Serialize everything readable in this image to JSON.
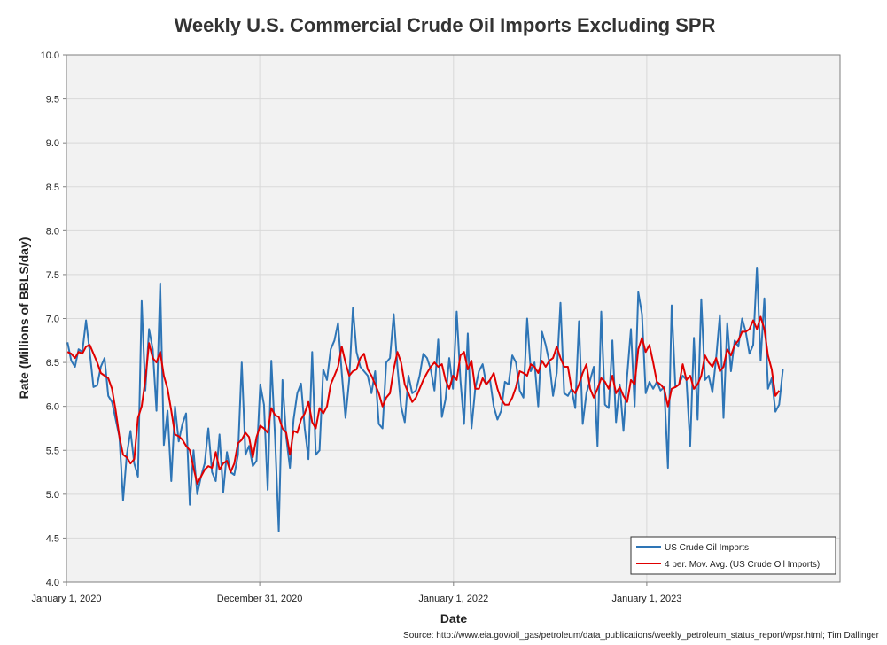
{
  "chart_data": {
    "type": "line",
    "title": "Weekly U.S. Commercial Crude Oil Imports Excluding SPR",
    "xlabel": "Date",
    "ylabel": "Rate (Millions of BBLS/day)",
    "source": "Source: http://www.eia.gov/oil_gas/petroleum/data_publications/weekly_petroleum_status_report/wpsr.html; Tim Dallinger",
    "ylim": [
      4.0,
      10.0
    ],
    "yticks": [
      4.0,
      4.5,
      5.0,
      5.5,
      6.0,
      6.5,
      7.0,
      7.5,
      8.0,
      8.5,
      9.0,
      9.5,
      10.0
    ],
    "ytick_labels": [
      "4.0",
      "4.5",
      "5.0",
      "5.5",
      "6.0",
      "6.5",
      "7.0",
      "7.5",
      "8.0",
      "8.5",
      "9.0",
      "9.5",
      "10.0"
    ],
    "xlim": [
      "2020-01-01",
      "2024-01-01"
    ],
    "xticks": [
      "2020-01-01",
      "2020-12-31",
      "2022-01-01",
      "2023-01-01"
    ],
    "xtick_labels": [
      "January 1, 2020",
      "December 31, 2020",
      "January 1, 2022",
      "January 1, 2023"
    ],
    "grid": true,
    "legend_position": "bottom-right",
    "colors": {
      "imports": "#2e75b6",
      "moving_avg": "#e00000",
      "plot_bg": "#f2f2f2",
      "grid": "#d9d9d9"
    },
    "series": [
      {
        "name": "US Crude Oil Imports",
        "color": "#2e75b6",
        "start": "2020-01-03",
        "interval_days": 7,
        "values": [
          6.73,
          6.52,
          6.45,
          6.65,
          6.62,
          6.98,
          6.62,
          6.22,
          6.24,
          6.45,
          6.55,
          6.12,
          6.05,
          5.85,
          5.65,
          4.93,
          5.45,
          5.72,
          5.35,
          5.2,
          7.2,
          6.18,
          6.88,
          6.65,
          5.95,
          7.4,
          5.56,
          5.95,
          5.15,
          6.0,
          5.6,
          5.8,
          5.92,
          4.88,
          5.5,
          5.0,
          5.2,
          5.35,
          5.75,
          5.25,
          5.15,
          5.68,
          5.02,
          5.48,
          5.25,
          5.22,
          5.45,
          6.5,
          5.45,
          5.55,
          5.32,
          5.38,
          6.25,
          6.02,
          5.05,
          6.52,
          5.65,
          4.58,
          6.3,
          5.65,
          5.3,
          5.85,
          6.15,
          6.26,
          5.75,
          5.4,
          6.62,
          5.45,
          5.5,
          6.42,
          6.3,
          6.65,
          6.75,
          6.95,
          6.38,
          5.87,
          6.3,
          7.12,
          6.62,
          6.45,
          6.4,
          6.35,
          6.15,
          6.4,
          5.8,
          5.75,
          6.5,
          6.55,
          7.05,
          6.45,
          6.0,
          5.82,
          6.35,
          6.15,
          6.18,
          6.35,
          6.6,
          6.55,
          6.42,
          6.18,
          6.76,
          5.88,
          6.08,
          6.55,
          6.2,
          7.08,
          6.3,
          5.8,
          6.83,
          5.75,
          6.2,
          6.4,
          6.48,
          6.25,
          6.3,
          6.0,
          5.85,
          5.95,
          6.28,
          6.25,
          6.58,
          6.5,
          6.18,
          6.1,
          7.0,
          6.4,
          6.5,
          6.0,
          6.85,
          6.7,
          6.5,
          6.12,
          6.38,
          7.18,
          6.15,
          6.12,
          6.2,
          5.98,
          6.97,
          5.8,
          6.15,
          6.3,
          6.45,
          5.55,
          7.08,
          6.02,
          5.98,
          6.75,
          5.82,
          6.25,
          5.72,
          6.35,
          6.88,
          6.0,
          7.3,
          7.05,
          6.15,
          6.28,
          6.2,
          6.28,
          6.18,
          6.22,
          5.3,
          7.15,
          6.22,
          6.25,
          6.35,
          6.3,
          5.55,
          6.78,
          5.85,
          7.22,
          6.3,
          6.35,
          6.16,
          6.55,
          7.04,
          5.87,
          6.95,
          6.4,
          6.75,
          6.68,
          7.0,
          6.85,
          6.6,
          6.7,
          7.58,
          6.52,
          7.23,
          6.2,
          6.32,
          5.94,
          6.02,
          6.42
        ]
      },
      {
        "name": "4 per. Mov. Avg. (US Crude Oil Imports)",
        "color": "#e00000",
        "start": "2020-01-03",
        "interval_days": 7,
        "values": [
          6.62,
          6.6,
          6.55,
          6.62,
          6.6,
          6.68,
          6.7,
          6.6,
          6.5,
          6.38,
          6.35,
          6.32,
          6.2,
          5.95,
          5.65,
          5.45,
          5.42,
          5.35,
          5.4,
          5.87,
          6.0,
          6.3,
          6.72,
          6.55,
          6.5,
          6.62,
          6.35,
          6.2,
          5.95,
          5.68,
          5.66,
          5.62,
          5.55,
          5.5,
          5.3,
          5.12,
          5.2,
          5.28,
          5.32,
          5.3,
          5.48,
          5.28,
          5.35,
          5.38,
          5.25,
          5.35,
          5.58,
          5.62,
          5.7,
          5.65,
          5.42,
          5.65,
          5.78,
          5.75,
          5.7,
          5.98,
          5.9,
          5.88,
          5.75,
          5.7,
          5.45,
          5.72,
          5.7,
          5.85,
          5.92,
          6.05,
          5.82,
          5.75,
          5.98,
          5.92,
          6.0,
          6.25,
          6.35,
          6.45,
          6.68,
          6.5,
          6.35,
          6.4,
          6.42,
          6.55,
          6.6,
          6.42,
          6.35,
          6.25,
          6.15,
          6.0,
          6.1,
          6.15,
          6.42,
          6.62,
          6.5,
          6.25,
          6.15,
          6.05,
          6.1,
          6.2,
          6.3,
          6.38,
          6.45,
          6.5,
          6.45,
          6.48,
          6.3,
          6.2,
          6.35,
          6.3,
          6.58,
          6.62,
          6.42,
          6.52,
          6.2,
          6.2,
          6.32,
          6.25,
          6.3,
          6.38,
          6.2,
          6.08,
          6.02,
          6.02,
          6.1,
          6.22,
          6.4,
          6.38,
          6.35,
          6.48,
          6.45,
          6.38,
          6.52,
          6.45,
          6.52,
          6.55,
          6.68,
          6.55,
          6.45,
          6.45,
          6.2,
          6.15,
          6.25,
          6.38,
          6.48,
          6.2,
          6.1,
          6.2,
          6.32,
          6.28,
          6.2,
          6.35,
          6.15,
          6.22,
          6.12,
          6.05,
          6.3,
          6.25,
          6.65,
          6.78,
          6.62,
          6.7,
          6.5,
          6.28,
          6.25,
          6.2,
          6.0,
          6.2,
          6.22,
          6.25,
          6.48,
          6.3,
          6.35,
          6.2,
          6.25,
          6.35,
          6.58,
          6.5,
          6.45,
          6.55,
          6.4,
          6.45,
          6.65,
          6.58,
          6.7,
          6.75,
          6.85,
          6.85,
          6.88,
          6.98,
          6.88,
          7.02,
          6.88,
          6.58,
          6.42,
          6.12,
          6.18
        ]
      }
    ]
  }
}
